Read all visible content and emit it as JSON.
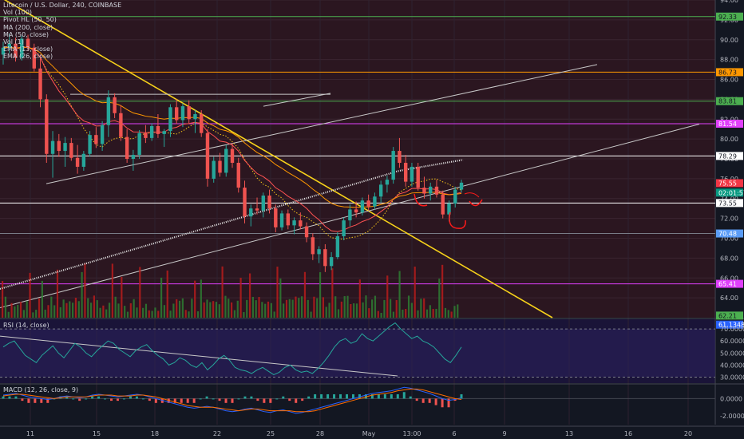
{
  "chart_data": {
    "type": "candlestick",
    "title": "Litecoin / U.S. Dollar, 240, COINBASE",
    "legend": [
      "Vol (100)",
      "Pivot HL (50, 50)",
      "MA (200, close)",
      "MA (50, close)",
      "Vol (1)",
      "EMA (13, close)",
      "EMA (26, close)"
    ],
    "price_axis": {
      "min": 62,
      "max": 94,
      "ticks": [
        "94.00",
        "92.00",
        "90.00",
        "88.00",
        "86.00",
        "84.00",
        "82.00",
        "80.00",
        "78.00",
        "76.00",
        "74.00",
        "72.00",
        "70.00",
        "68.00",
        "66.00",
        "64.00"
      ]
    },
    "x_ticks": [
      "11",
      "15",
      "18",
      "22",
      "25",
      "28",
      "May",
      "13:00",
      "6",
      "9",
      "13",
      "16",
      "20"
    ],
    "price_tags": [
      {
        "value": 92.33,
        "label": "92.33",
        "color": "#4caf50"
      },
      {
        "value": 86.73,
        "label": "86.73",
        "color": "#ff9800"
      },
      {
        "value": 83.81,
        "label": "83.81",
        "color": "#4caf50"
      },
      {
        "value": 81.54,
        "label": "81.54",
        "color": "#e040fb"
      },
      {
        "value": 78.29,
        "label": "78.29",
        "color": "#ffffff"
      },
      {
        "value": 75.55,
        "label": "75.55",
        "color": "#f23645"
      },
      {
        "value": 74.6,
        "label": "02:01:57",
        "color": "#089981"
      },
      {
        "value": 73.55,
        "label": "73.55",
        "color": "#ffffff"
      },
      {
        "value": 70.48,
        "label": "70.48",
        "color": "#5b9cf6"
      },
      {
        "value": 65.41,
        "label": "65.41",
        "color": "#e040fb"
      },
      {
        "value": 62.21,
        "label": "62.21",
        "color": "#4caf50"
      },
      {
        "value": 61.3,
        "label": "61.1348",
        "color": "#2962ff"
      }
    ],
    "horizontal_levels": [
      {
        "value": 92.33,
        "color": "#4caf50"
      },
      {
        "value": 86.73,
        "color": "#ff9800"
      },
      {
        "value": 83.81,
        "color": "#4caf50"
      },
      {
        "value": 81.54,
        "color": "#e040fb"
      },
      {
        "value": 78.29,
        "color": "#ffffff"
      },
      {
        "value": 73.55,
        "color": "#ffffff"
      },
      {
        "value": 70.48,
        "color": "#787b86"
      },
      {
        "value": 65.41,
        "color": "#e040fb"
      }
    ],
    "rsi": {
      "label": "RSI (14, close)",
      "ticks": [
        "70.0000",
        "60.0000",
        "50.0000",
        "40.0000",
        "30.0000"
      ],
      "min": 25,
      "max": 78,
      "values": [
        55,
        58,
        60,
        54,
        48,
        45,
        42,
        48,
        52,
        56,
        50,
        46,
        52,
        58,
        55,
        50,
        47,
        52,
        56,
        60,
        58,
        53,
        50,
        47,
        52,
        55,
        57,
        52,
        48,
        45,
        40,
        42,
        46,
        44,
        40,
        38,
        42,
        36,
        40,
        45,
        48,
        44,
        38,
        36,
        35,
        33,
        36,
        38,
        35,
        32,
        34,
        38,
        40,
        36,
        34,
        35,
        33,
        37,
        42,
        48,
        55,
        60,
        62,
        58,
        60,
        66,
        62,
        60,
        64,
        68,
        72,
        75,
        70,
        66,
        62,
        64,
        60,
        58,
        55,
        50,
        45,
        42,
        48,
        55
      ]
    },
    "macd": {
      "label": "MACD (12, 26, close, 9)",
      "ticks": [
        "0.0000",
        "-2.0000"
      ],
      "min": -3,
      "max": 1.6,
      "macd_line": [
        0.4,
        0.5,
        0.6,
        0.4,
        0.2,
        0.1,
        0.0,
        -0.1,
        0.0,
        0.2,
        0.3,
        0.2,
        0.1,
        0.2,
        0.4,
        0.5,
        0.4,
        0.3,
        0.2,
        0.3,
        0.4,
        0.5,
        0.4,
        0.2,
        0.0,
        -0.2,
        -0.4,
        -0.6,
        -0.8,
        -1.0,
        -1.1,
        -1.0,
        -0.9,
        -1.0,
        -1.2,
        -1.4,
        -1.5,
        -1.4,
        -1.2,
        -1.1,
        -1.3,
        -1.5,
        -1.6,
        -1.4,
        -1.3,
        -1.5,
        -1.7,
        -1.6,
        -1.4,
        -1.2,
        -1.0,
        -0.8,
        -0.6,
        -0.4,
        -0.2,
        0.0,
        0.2,
        0.4,
        0.6,
        0.7,
        0.8,
        0.9,
        1.1,
        1.3,
        1.2,
        1.0,
        0.8,
        0.6,
        0.3,
        0.0,
        -0.2,
        -0.1,
        0.1
      ],
      "signal_line": [
        0.3,
        0.4,
        0.5,
        0.5,
        0.4,
        0.3,
        0.2,
        0.1,
        0.0,
        0.1,
        0.2,
        0.2,
        0.2,
        0.2,
        0.3,
        0.4,
        0.4,
        0.4,
        0.3,
        0.3,
        0.3,
        0.4,
        0.4,
        0.3,
        0.2,
        0.0,
        -0.2,
        -0.4,
        -0.6,
        -0.8,
        -0.9,
        -1.0,
        -1.0,
        -1.0,
        -1.1,
        -1.2,
        -1.3,
        -1.4,
        -1.3,
        -1.2,
        -1.2,
        -1.3,
        -1.4,
        -1.4,
        -1.4,
        -1.4,
        -1.5,
        -1.5,
        -1.5,
        -1.4,
        -1.2,
        -1.0,
        -0.8,
        -0.6,
        -0.4,
        -0.2,
        0.0,
        0.2,
        0.4,
        0.5,
        0.6,
        0.7,
        0.9,
        1.0,
        1.1,
        1.1,
        1.0,
        0.8,
        0.6,
        0.4,
        0.2,
        0.0,
        -0.1
      ]
    },
    "candles": [
      [
        88.5,
        89.8,
        87.5,
        89.2
      ],
      [
        89.2,
        90.6,
        88.6,
        89.6
      ],
      [
        89.6,
        90.2,
        87.8,
        88.2
      ],
      [
        88.2,
        90.4,
        87.9,
        90.1
      ],
      [
        90.1,
        90.5,
        88.9,
        89.2
      ],
      [
        89.2,
        89.6,
        86.8,
        87.1
      ],
      [
        87.1,
        88.5,
        83.2,
        84.0
      ],
      [
        84.0,
        84.5,
        77.6,
        78.5
      ],
      [
        78.5,
        80.8,
        76.1,
        79.8
      ],
      [
        79.8,
        80.5,
        78.2,
        78.8
      ],
      [
        78.8,
        80.2,
        77.2,
        79.6
      ],
      [
        79.6,
        80.1,
        77.8,
        78.1
      ],
      [
        78.1,
        79.4,
        76.5,
        77.2
      ],
      [
        77.2,
        78.8,
        76.8,
        78.5
      ],
      [
        78.5,
        80.8,
        78.2,
        80.4
      ],
      [
        80.4,
        81.2,
        79.1,
        79.5
      ],
      [
        79.5,
        81.8,
        78.8,
        81.4
      ],
      [
        81.4,
        84.9,
        80.2,
        84.2
      ],
      [
        84.2,
        84.6,
        82.1,
        82.6
      ],
      [
        82.6,
        83.4,
        79.8,
        80.2
      ],
      [
        80.2,
        81.0,
        77.6,
        78.0
      ],
      [
        78.0,
        78.9,
        76.8,
        78.4
      ],
      [
        78.4,
        80.9,
        78.0,
        80.6
      ],
      [
        80.6,
        81.4,
        79.6,
        80.1
      ],
      [
        80.1,
        81.6,
        79.8,
        81.3
      ],
      [
        81.3,
        82.5,
        80.1,
        80.5
      ],
      [
        80.5,
        81.0,
        79.2,
        80.8
      ],
      [
        80.8,
        83.5,
        80.2,
        83.2
      ],
      [
        83.2,
        84.0,
        81.5,
        81.9
      ],
      [
        81.9,
        83.6,
        81.2,
        83.3
      ],
      [
        83.3,
        83.9,
        81.6,
        82.0
      ],
      [
        82.0,
        82.9,
        80.6,
        82.5
      ],
      [
        82.5,
        82.9,
        80.2,
        80.6
      ],
      [
        80.6,
        81.0,
        75.2,
        76.0
      ],
      [
        76.0,
        78.2,
        75.6,
        77.8
      ],
      [
        77.8,
        78.6,
        76.2,
        76.6
      ],
      [
        76.6,
        79.4,
        76.2,
        79.0
      ],
      [
        79.0,
        79.6,
        77.1,
        77.6
      ],
      [
        77.6,
        78.1,
        74.6,
        75.1
      ],
      [
        75.1,
        75.8,
        71.5,
        72.2
      ],
      [
        72.2,
        73.4,
        71.2,
        73.0
      ],
      [
        73.0,
        74.1,
        72.4,
        72.8
      ],
      [
        72.8,
        74.6,
        72.1,
        74.3
      ],
      [
        74.3,
        74.9,
        72.5,
        73.0
      ],
      [
        73.0,
        73.4,
        70.6,
        71.1
      ],
      [
        71.1,
        72.8,
        70.8,
        72.5
      ],
      [
        72.5,
        72.9,
        70.9,
        71.3
      ],
      [
        71.3,
        72.1,
        70.4,
        71.8
      ],
      [
        71.8,
        72.6,
        70.9,
        71.2
      ],
      [
        71.2,
        71.6,
        69.6,
        70.1
      ],
      [
        70.1,
        70.5,
        67.8,
        68.4
      ],
      [
        68.4,
        69.2,
        67.5,
        68.9
      ],
      [
        68.9,
        69.4,
        66.6,
        67.2
      ],
      [
        67.2,
        68.6,
        66.8,
        68.1
      ],
      [
        68.1,
        70.6,
        67.9,
        70.2
      ],
      [
        70.2,
        72.1,
        69.8,
        71.8
      ],
      [
        71.8,
        73.4,
        71.2,
        72.9
      ],
      [
        72.9,
        73.7,
        72.1,
        72.6
      ],
      [
        72.6,
        74.1,
        72.3,
        73.8
      ],
      [
        73.8,
        74.4,
        72.8,
        73.2
      ],
      [
        73.2,
        74.6,
        72.9,
        74.2
      ],
      [
        74.2,
        75.8,
        73.6,
        75.4
      ],
      [
        75.4,
        76.3,
        74.6,
        75.9
      ],
      [
        75.9,
        79.2,
        75.5,
        78.8
      ],
      [
        78.8,
        80.1,
        77.1,
        77.6
      ],
      [
        77.6,
        78.4,
        75.2,
        75.7
      ],
      [
        75.7,
        77.6,
        75.2,
        77.2
      ],
      [
        77.2,
        77.6,
        74.8,
        75.1
      ],
      [
        75.1,
        76.2,
        74.0,
        74.5
      ],
      [
        74.5,
        75.6,
        73.8,
        75.2
      ],
      [
        75.2,
        75.9,
        74.1,
        74.4
      ],
      [
        74.4,
        74.8,
        72.0,
        72.4
      ],
      [
        72.4,
        73.8,
        71.7,
        73.5
      ],
      [
        73.5,
        75.2,
        73.1,
        74.9
      ],
      [
        74.9,
        75.9,
        74.6,
        75.6
      ]
    ],
    "volume_scale_max": 100
  }
}
